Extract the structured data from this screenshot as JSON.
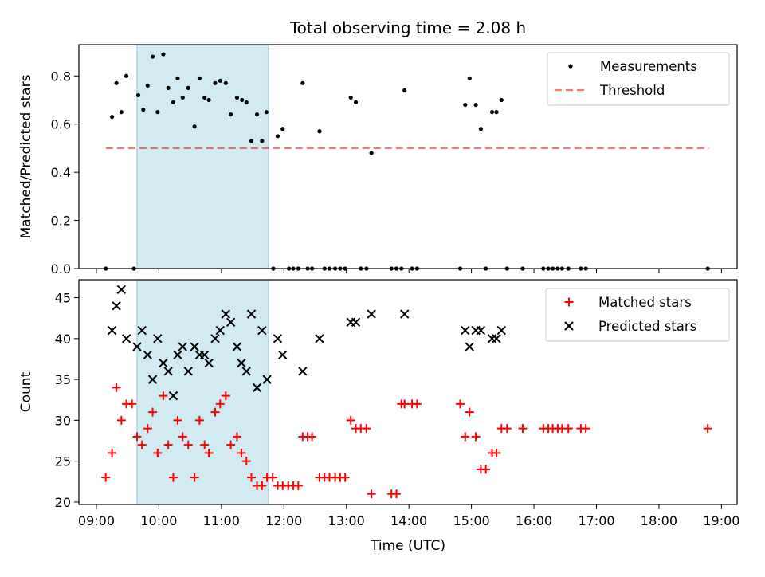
{
  "figure": {
    "title": "Total observing time = 2.08 h"
  },
  "chart_data": [
    {
      "type": "scatter",
      "panel": "top",
      "ylabel": "Matched/Predicted stars",
      "xlabel": "",
      "xlim": [
        8.72,
        19.25
      ],
      "ylim": [
        0.0,
        0.93
      ],
      "yticks": [
        0.0,
        0.2,
        0.4,
        0.6,
        0.8
      ],
      "ytick_labels": [
        "0.0",
        "0.2",
        "0.4",
        "0.6",
        "0.8"
      ],
      "xticks": [
        9,
        10,
        11,
        12,
        13,
        14,
        15,
        16,
        17,
        18,
        19
      ],
      "shaded_region": {
        "x0": 9.65,
        "x1": 11.75,
        "color": "#add8e6"
      },
      "threshold": {
        "name": "Threshold",
        "y": 0.5,
        "x0": 9.15,
        "x1": 18.8,
        "color": "#ff0000",
        "dash": true
      },
      "legend": {
        "position": "upper right",
        "entries": [
          "Measurements",
          "Threshold"
        ]
      },
      "series": [
        {
          "name": "Measurements",
          "marker": "dot",
          "color": "#000000",
          "x": [
            9.15,
            9.25,
            9.32,
            9.4,
            9.48,
            9.6,
            9.67,
            9.75,
            9.82,
            9.9,
            9.98,
            10.07,
            10.15,
            10.23,
            10.3,
            10.38,
            10.47,
            10.57,
            10.65,
            10.73,
            10.8,
            10.9,
            10.98,
            11.07,
            11.15,
            11.25,
            11.33,
            11.4,
            11.48,
            11.57,
            11.65,
            11.72,
            11.83,
            11.9,
            11.98,
            12.08,
            12.15,
            12.23,
            12.3,
            12.38,
            12.45,
            12.57,
            12.65,
            12.73,
            12.82,
            12.9,
            12.98,
            13.07,
            13.15,
            13.23,
            13.32,
            13.4,
            13.72,
            13.8,
            13.88,
            13.93,
            14.05,
            14.13,
            14.82,
            14.9,
            14.97,
            15.07,
            15.15,
            15.23,
            15.33,
            15.4,
            15.48,
            15.57,
            15.82,
            16.15,
            16.23,
            16.3,
            16.38,
            16.45,
            16.55,
            16.75,
            16.83,
            18.78
          ],
          "y": [
            0.0,
            0.63,
            0.77,
            0.65,
            0.8,
            0.0,
            0.72,
            0.66,
            0.76,
            0.88,
            0.65,
            0.89,
            0.75,
            0.69,
            0.79,
            0.71,
            0.75,
            0.59,
            0.79,
            0.71,
            0.7,
            0.77,
            0.78,
            0.77,
            0.64,
            0.71,
            0.7,
            0.69,
            0.53,
            0.64,
            0.53,
            0.65,
            0.0,
            0.55,
            0.58,
            0.0,
            0.0,
            0.0,
            0.77,
            0.0,
            0.0,
            0.57,
            0.0,
            0.0,
            0.0,
            0.0,
            0.0,
            0.71,
            0.69,
            0.0,
            0.0,
            0.48,
            0.0,
            0.0,
            0.0,
            0.74,
            0.0,
            0.0,
            0.0,
            0.68,
            0.79,
            0.68,
            0.58,
            0.0,
            0.65,
            0.65,
            0.7,
            0.0,
            0.0,
            0.0,
            0.0,
            0.0,
            0.0,
            0.0,
            0.0,
            0.0,
            0.0,
            0.0
          ]
        }
      ]
    },
    {
      "type": "scatter",
      "panel": "bottom",
      "ylabel": "Count",
      "xlabel": "Time (UTC)",
      "xlim": [
        8.72,
        19.25
      ],
      "ylim": [
        19.7,
        47.2
      ],
      "yticks": [
        20,
        25,
        30,
        35,
        40,
        45
      ],
      "ytick_labels": [
        "20",
        "25",
        "30",
        "35",
        "40",
        "45"
      ],
      "xticks": [
        9,
        10,
        11,
        12,
        13,
        14,
        15,
        16,
        17,
        18,
        19
      ],
      "xtick_labels": [
        "09:00",
        "10:00",
        "11:00",
        "12:00",
        "13:00",
        "14:00",
        "15:00",
        "16:00",
        "17:00",
        "18:00",
        "19:00"
      ],
      "shaded_region": {
        "x0": 9.65,
        "x1": 11.75,
        "color": "#add8e6"
      },
      "legend": {
        "position": "upper right",
        "entries": [
          "Matched stars",
          "Predicted stars"
        ]
      },
      "series": [
        {
          "name": "Matched stars",
          "marker": "plus",
          "color": "#ff0000",
          "x": [
            9.15,
            9.25,
            9.32,
            9.4,
            9.48,
            9.57,
            9.65,
            9.73,
            9.82,
            9.9,
            9.98,
            10.07,
            10.15,
            10.23,
            10.3,
            10.38,
            10.47,
            10.57,
            10.65,
            10.73,
            10.8,
            10.9,
            10.98,
            11.07,
            11.15,
            11.25,
            11.32,
            11.4,
            11.48,
            11.57,
            11.65,
            11.73,
            11.82,
            11.9,
            11.98,
            12.07,
            12.15,
            12.23,
            12.3,
            12.38,
            12.45,
            12.57,
            12.65,
            12.73,
            12.82,
            12.9,
            12.98,
            13.07,
            13.15,
            13.23,
            13.32,
            13.4,
            13.72,
            13.8,
            13.88,
            13.93,
            14.05,
            14.13,
            14.82,
            14.9,
            14.97,
            15.07,
            15.15,
            15.23,
            15.33,
            15.4,
            15.48,
            15.57,
            15.82,
            16.15,
            16.23,
            16.3,
            16.38,
            16.45,
            16.55,
            16.75,
            16.83,
            18.78
          ],
          "y": [
            23,
            26,
            34,
            30,
            32,
            32,
            28,
            27,
            29,
            31,
            26,
            33,
            27,
            23,
            30,
            28,
            27,
            23,
            30,
            27,
            26,
            31,
            32,
            33,
            27,
            28,
            26,
            25,
            23,
            22,
            22,
            23,
            23,
            22,
            22,
            22,
            22,
            22,
            28,
            28,
            28,
            23,
            23,
            23,
            23,
            23,
            23,
            30,
            29,
            29,
            29,
            21,
            21,
            21,
            32,
            32,
            32,
            32,
            32,
            28,
            31,
            28,
            24,
            24,
            26,
            26,
            29,
            29,
            29,
            29,
            29,
            29,
            29,
            29,
            29,
            29,
            29,
            29
          ]
        },
        {
          "name": "Predicted stars",
          "marker": "x",
          "color": "#000000",
          "x": [
            9.25,
            9.32,
            9.4,
            9.48,
            9.65,
            9.73,
            9.82,
            9.9,
            9.98,
            10.07,
            10.15,
            10.23,
            10.3,
            10.38,
            10.47,
            10.57,
            10.65,
            10.73,
            10.8,
            10.9,
            10.98,
            11.07,
            11.15,
            11.25,
            11.32,
            11.4,
            11.48,
            11.57,
            11.65,
            11.73,
            11.9,
            11.98,
            12.3,
            12.57,
            13.07,
            13.15,
            13.4,
            13.93,
            14.9,
            14.97,
            15.07,
            15.15,
            15.33,
            15.4,
            15.48
          ],
          "y": [
            41,
            44,
            46,
            40,
            39,
            41,
            38,
            35,
            40,
            37,
            36,
            33,
            38,
            39,
            36,
            39,
            38,
            38,
            37,
            40,
            41,
            43,
            42,
            39,
            37,
            36,
            43,
            34,
            41,
            35,
            40,
            38,
            36,
            40,
            42,
            42,
            43,
            43,
            41,
            39,
            41,
            41,
            40,
            40,
            41
          ]
        }
      ]
    }
  ]
}
